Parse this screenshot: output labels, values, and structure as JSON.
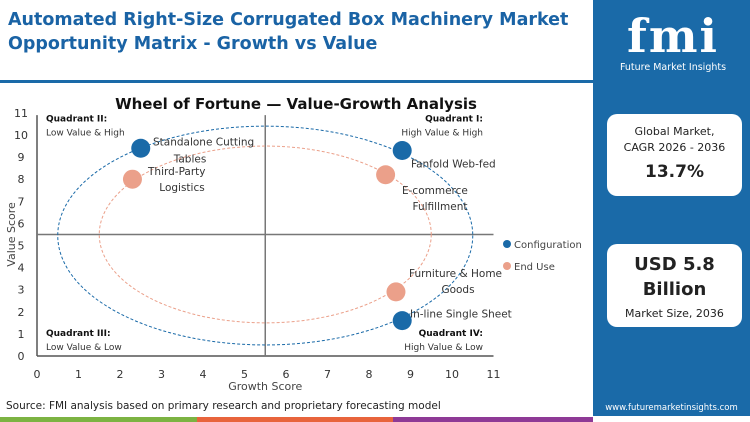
{
  "header": {
    "title": "Automated Right-Size Corrugated Box Machinery Market Opportunity Matrix - Growth vs Value"
  },
  "sidebar": {
    "logo_text": "fmi",
    "logo_subtitle": "Future Market Insights",
    "cagr_label": "Global Market, CAGR 2026 - 2036",
    "cagr_value": "13.7%",
    "size_value": "USD 5.8 Billion",
    "size_label": "Market Size, 2036",
    "url": "www.futuremarketinsights.com",
    "brand_color": "#1a6aa8"
  },
  "footer": {
    "source": "Source: FMI analysis based on primary research and proprietary forecasting model",
    "stripe_colors": [
      "#7cb342",
      "#e8643c",
      "#8e3a96"
    ]
  },
  "chart_data": {
    "type": "scatter",
    "title": "Wheel of Fortune — Value-Growth  Analysis",
    "xlabel": "Growth Score",
    "ylabel": "Value Score",
    "xlim": [
      0,
      11
    ],
    "ylim": [
      0,
      11
    ],
    "xticks": [
      0,
      1,
      2,
      3,
      4,
      5,
      6,
      7,
      8,
      9,
      10,
      11
    ],
    "yticks": [
      0,
      1,
      2,
      3,
      4,
      5,
      6,
      7,
      8,
      9,
      10,
      11
    ],
    "divider": {
      "x": 5.5,
      "y": 5.5
    },
    "quadrants": [
      {
        "title": "Quadrant II:",
        "subtitle": "Low Value & High"
      },
      {
        "title": "Quadrant I:",
        "subtitle": "High Value & High"
      },
      {
        "title": "Quadrant III:",
        "subtitle": "Low Value & Low"
      },
      {
        "title": "Quadrant IV:",
        "subtitle": "High Value & Low"
      }
    ],
    "legend_position": "right",
    "series": [
      {
        "name": "Configuration",
        "color": "#1a6aa8",
        "ellipse": {
          "cx": 5.5,
          "cy": 5.45,
          "rx": 5,
          "ry": 4.95
        },
        "points": [
          {
            "label": "Standalone Cutting Tables",
            "x": 2.5,
            "y": 9.4
          },
          {
            "label": "Fanfold Web-fed",
            "x": 8.8,
            "y": 9.3
          },
          {
            "label": "In-line Single Sheet",
            "x": 8.8,
            "y": 1.6
          }
        ]
      },
      {
        "name": "End Use",
        "color": "#eba08a",
        "ellipse": {
          "cx": 5.5,
          "cy": 5.5,
          "rx": 4,
          "ry": 4
        },
        "points": [
          {
            "label": "Third-Party Logistics",
            "x": 2.3,
            "y": 8.0
          },
          {
            "label": "E-commerce Fulfillment",
            "x": 8.4,
            "y": 8.2
          },
          {
            "label": "Furniture & Home Goods",
            "x": 8.65,
            "y": 2.9
          }
        ]
      }
    ]
  }
}
